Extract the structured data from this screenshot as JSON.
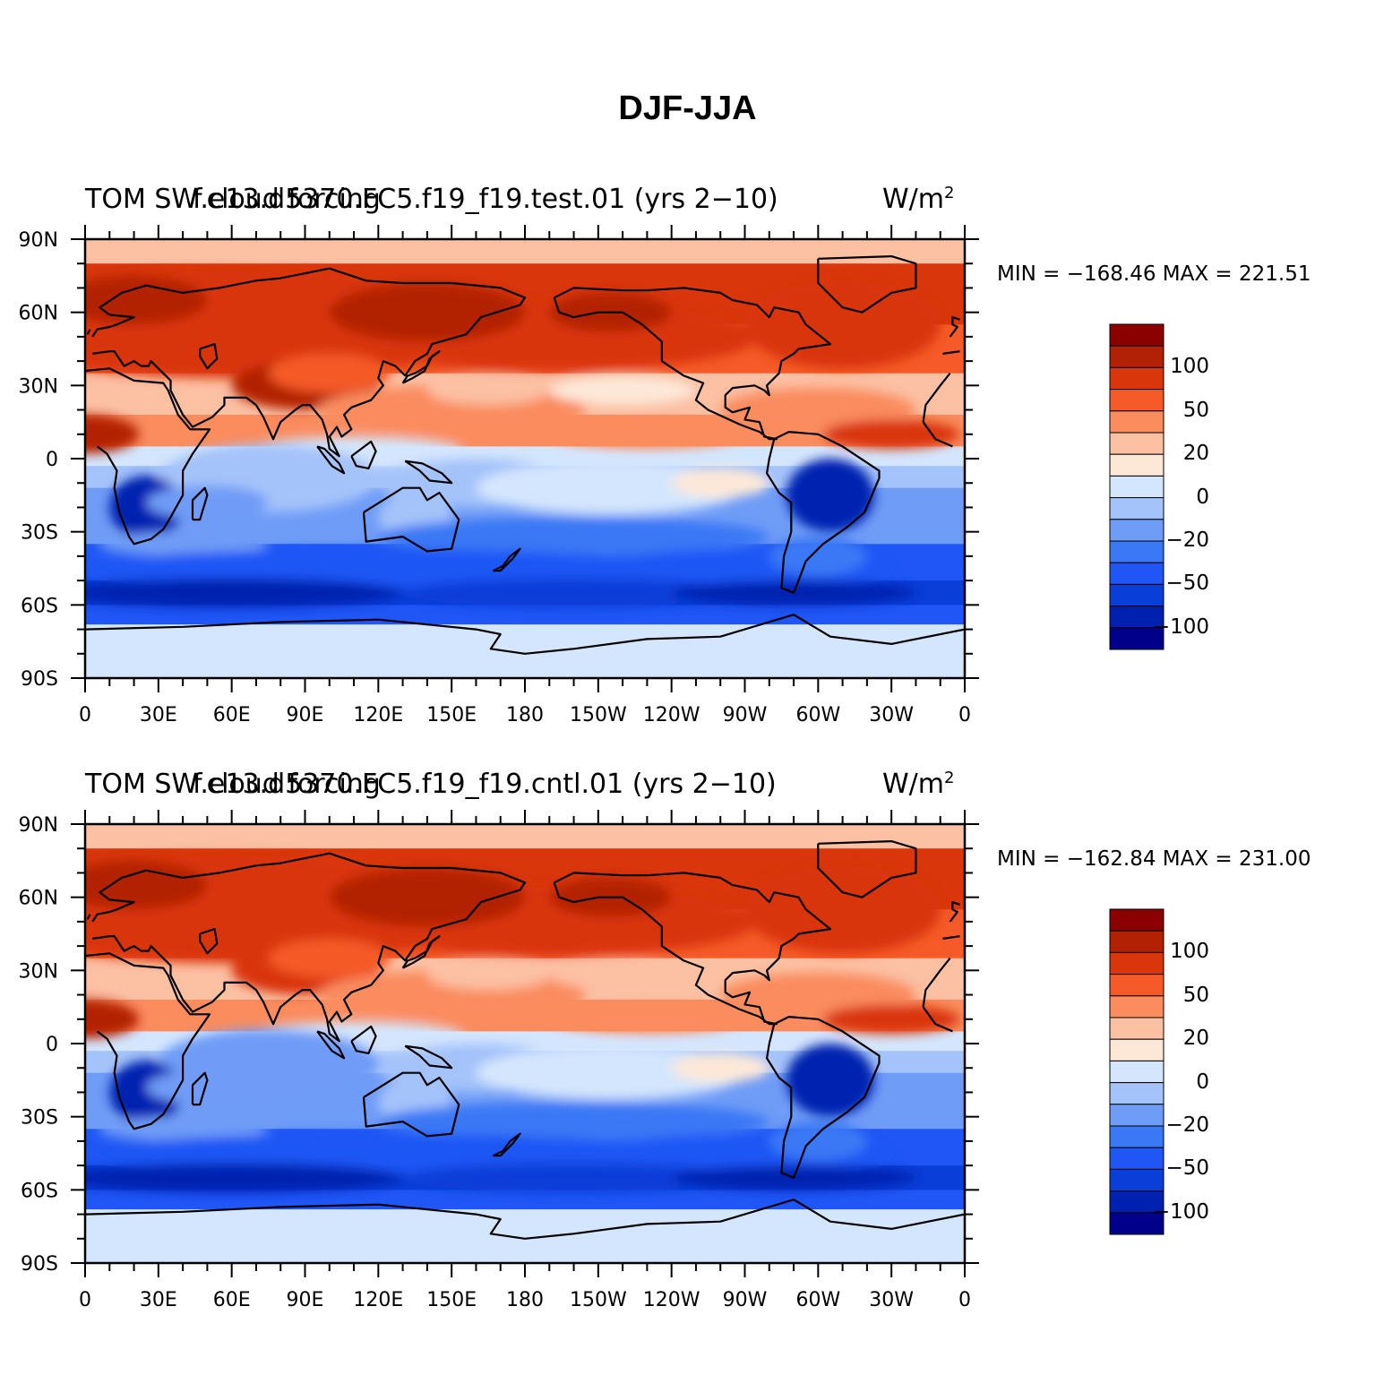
{
  "title": "DJF-JJA",
  "palette": [
    "#00008b",
    "#0020b0",
    "#0a3ed8",
    "#1f56f5",
    "#3a78f5",
    "#6f9cf7",
    "#a4c3fa",
    "#d4e6fd",
    "#fde8d8",
    "#fcc0a3",
    "#fa8c5e",
    "#f55a28",
    "#d9360c",
    "#b32104",
    "#8b0000"
  ],
  "colorbar_levels": [
    "100",
    "50",
    "20",
    "0",
    "−20",
    "−50",
    "−100"
  ],
  "lat_ticks": [
    "90N",
    "60N",
    "30N",
    "0",
    "30S",
    "60S",
    "90S"
  ],
  "lon_ticks": [
    "0",
    "30E",
    "60E",
    "90E",
    "120E",
    "150E",
    "180",
    "150W",
    "120W",
    "90W",
    "60W",
    "30W",
    "0"
  ],
  "panels": [
    {
      "left_title": "TOM SW cloud forcing",
      "center_title": "f.e13.d5370.FC5.f19_f19.test.01 (yrs 2−10)",
      "units": "W/m",
      "units_sup": "2",
      "minmax": "MIN = −168.46  MAX = 221.51"
    },
    {
      "left_title": "TOM SW cloud forcing",
      "center_title": "f.e13.d5370.FC5.f19_f19.cntl.01 (yrs 2−10)",
      "units": "W/m",
      "units_sup": "2",
      "minmax": "MIN = −162.84  MAX = 231.00"
    }
  ]
}
